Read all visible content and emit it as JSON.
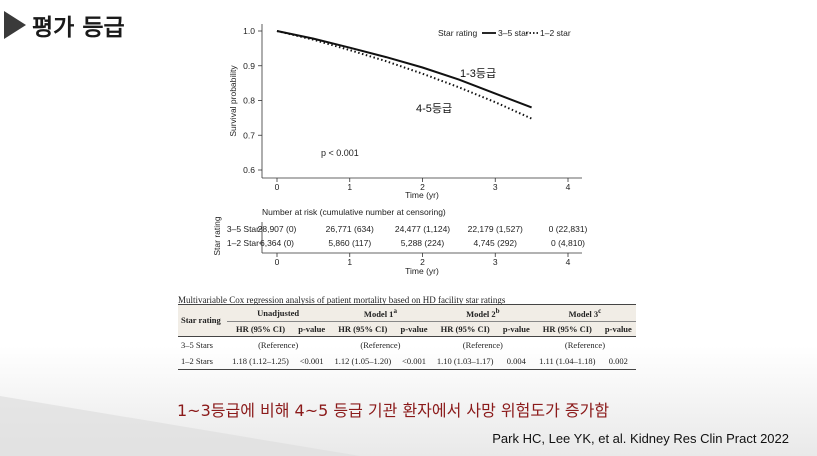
{
  "slide": {
    "title": "평가 등급",
    "takeaway": "1~3등급에 비해 4~5 등급 기관 환자에서 사망 위험도가 증가함",
    "citation": "Park HC, Lee YK, et al. Kidney Res Clin Pract 2022"
  },
  "chart_data": [
    {
      "type": "line",
      "xlabel": "Time (yr)",
      "ylabel": "Survival probability",
      "xlim": [
        0,
        4
      ],
      "ylim": [
        0.6,
        1.0
      ],
      "x_ticks": [
        "0",
        "1",
        "2",
        "3",
        "4"
      ],
      "y_ticks": [
        "0.6",
        "0.7",
        "0.8",
        "0.9",
        "1.0"
      ],
      "legend_title": "Star rating",
      "legend_position": "top-right",
      "annotation": "p < 0.001",
      "series": [
        {
          "name": "3–5 star",
          "label": "1-3등급",
          "style": "solid",
          "x": [
            0,
            0.5,
            1,
            1.5,
            2,
            2.5,
            3,
            3.5
          ],
          "y": [
            1.0,
            0.978,
            0.952,
            0.925,
            0.895,
            0.86,
            0.82,
            0.78
          ]
        },
        {
          "name": "1–2 star",
          "label": "4-5등급",
          "style": "dotted",
          "x": [
            0,
            0.5,
            1,
            1.5,
            2,
            2.5,
            3,
            3.5
          ],
          "y": [
            1.0,
            0.975,
            0.945,
            0.913,
            0.877,
            0.838,
            0.795,
            0.748
          ]
        }
      ]
    },
    {
      "type": "table",
      "title": "Number at risk (cumulative number at censoring)",
      "ylabel": "Star rating",
      "xlabel": "Time (yr)",
      "x_ticks": [
        "0",
        "1",
        "2",
        "3",
        "4"
      ],
      "rows": [
        {
          "label": "3–5 Star",
          "values": [
            "28,907 (0)",
            "26,771 (634)",
            "24,477 (1,124)",
            "22,179 (1,527)",
            "0 (22,831)"
          ]
        },
        {
          "label": "1–2 Star",
          "values": [
            "6,364 (0)",
            "5,860 (117)",
            "5,288 (224)",
            "4,745 (292)",
            "0 (4,810)"
          ]
        }
      ]
    },
    {
      "type": "table",
      "title": "Multivariable Cox regression analysis of patient mortality based on HD facility star ratings",
      "row_header": "Star rating",
      "groups": [
        "Unadjusted",
        "Model 1",
        "Model 2",
        "Model 3"
      ],
      "group_superscripts": [
        "",
        "a",
        "b",
        "c"
      ],
      "subheaders": [
        "HR (95% CI)",
        "p-value"
      ],
      "rows": [
        {
          "label": "3–5 Stars",
          "cells": [
            "(Reference)",
            "",
            "(Reference)",
            "",
            "(Reference)",
            "",
            "(Reference)",
            ""
          ]
        },
        {
          "label": "1–2 Stars",
          "cells": [
            "1.18 (1.12–1.25)",
            "<0.001",
            "1.12 (1.05–1.20)",
            "<0.001",
            "1.10 (1.03–1.17)",
            "0.004",
            "1.11 (1.04–1.18)",
            "0.002"
          ]
        }
      ]
    }
  ]
}
